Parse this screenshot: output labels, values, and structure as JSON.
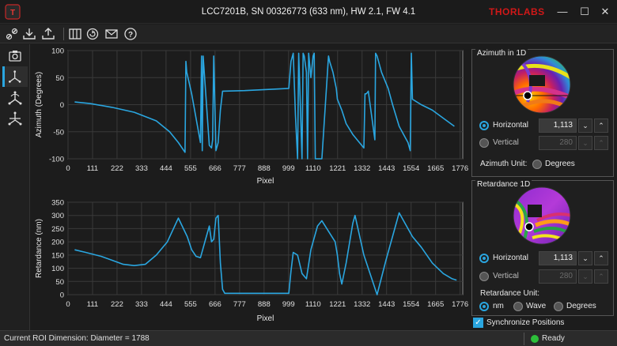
{
  "window": {
    "title": "LCC7201B, SN 00326773 (633 nm), HW 2.1, FW 4.1",
    "brand": "THORLABS",
    "minimize": "—",
    "maximize": "☐",
    "close": "✕"
  },
  "toolbar": {
    "icons": [
      "connect-icon",
      "download-icon",
      "upload-icon",
      "grid-icon",
      "refresh-icon",
      "mail-icon",
      "help-icon"
    ]
  },
  "leftnav": {
    "items": [
      "camera-icon",
      "axes-icon",
      "axes-rotate-icon",
      "axes-3d-icon"
    ],
    "active_index": 1
  },
  "chart_data": [
    {
      "type": "line",
      "title": "",
      "xlabel": "Pixel",
      "ylabel": "Azimuth (Degrees)",
      "xlim": [
        0,
        1788
      ],
      "ylim": [
        -100,
        100
      ],
      "xticks": [
        "0",
        "111",
        "222",
        "333",
        "444",
        "555",
        "666",
        "777",
        "888",
        "999",
        "1110",
        "1221",
        "1332",
        "1443",
        "1554",
        "1665",
        "1776"
      ],
      "yticks": [
        "100",
        "50",
        "0",
        "-50",
        "-100"
      ],
      "color": "#2aa6e0",
      "x": [
        30,
        100,
        200,
        300,
        400,
        460,
        500,
        530,
        534,
        538,
        560,
        600,
        605,
        608,
        612,
        640,
        650,
        655,
        660,
        670,
        680,
        690,
        700,
        800,
        900,
        1000,
        1010,
        1020,
        1030,
        1040,
        1045,
        1050,
        1060,
        1065,
        1070,
        1080,
        1085,
        1090,
        1100,
        1110,
        1115,
        1120,
        1150,
        1180,
        1185,
        1200,
        1215,
        1220,
        1230,
        1240,
        1260,
        1290,
        1320,
        1340,
        1345,
        1350,
        1355,
        1360,
        1390,
        1393,
        1400,
        1420,
        1450,
        1470,
        1500,
        1540,
        1550,
        1555,
        1560,
        1600,
        1650,
        1700,
        1750
      ],
      "y": [
        5,
        2,
        -5,
        -14,
        -30,
        -50,
        -70,
        -88,
        80,
        60,
        20,
        -70,
        90,
        -85,
        90,
        -75,
        -80,
        -65,
        90,
        -85,
        -70,
        -10,
        25,
        26,
        28,
        30,
        80,
        95,
        -20,
        -100,
        95,
        30,
        -100,
        95,
        90,
        60,
        -100,
        95,
        50,
        90,
        95,
        -100,
        -100,
        90,
        80,
        60,
        30,
        10,
        0,
        -10,
        -35,
        -55,
        -70,
        -80,
        20,
        20,
        22,
        25,
        -65,
        95,
        90,
        60,
        30,
        0,
        -40,
        -70,
        -85,
        95,
        10,
        0,
        -10,
        -25,
        -40
      ]
    },
    {
      "type": "line",
      "title": "",
      "xlabel": "Pixel",
      "ylabel": "Retardance (nm)",
      "xlim": [
        0,
        1788
      ],
      "ylim": [
        0,
        350
      ],
      "xticks": [
        "0",
        "111",
        "222",
        "333",
        "444",
        "555",
        "666",
        "777",
        "888",
        "999",
        "1110",
        "1221",
        "1332",
        "1443",
        "1554",
        "1665",
        "1776"
      ],
      "yticks": [
        "350",
        "300",
        "250",
        "200",
        "150",
        "100",
        "50",
        "0"
      ],
      "color": "#2aa6e0",
      "x": [
        30,
        80,
        150,
        200,
        250,
        300,
        350,
        400,
        450,
        500,
        540,
        560,
        580,
        600,
        620,
        640,
        650,
        660,
        670,
        680,
        690,
        700,
        710,
        720,
        800,
        900,
        1000,
        1010,
        1020,
        1040,
        1060,
        1080,
        1100,
        1110,
        1130,
        1150,
        1180,
        1210,
        1220,
        1230,
        1240,
        1260,
        1290,
        1300,
        1340,
        1400,
        1440,
        1500,
        1560,
        1600,
        1650,
        1700,
        1740,
        1760
      ],
      "y": [
        170,
        160,
        145,
        130,
        115,
        110,
        115,
        150,
        200,
        290,
        220,
        170,
        145,
        140,
        200,
        260,
        200,
        210,
        290,
        300,
        120,
        20,
        5,
        5,
        5,
        5,
        5,
        90,
        160,
        150,
        80,
        60,
        170,
        200,
        260,
        280,
        240,
        200,
        150,
        80,
        40,
        120,
        270,
        300,
        150,
        0,
        130,
        310,
        220,
        180,
        120,
        80,
        60,
        55
      ]
    }
  ],
  "azimuth_panel": {
    "title": "Azimuth in 1D",
    "horizontal_label": "Horizontal",
    "horizontal_value": "1,113",
    "vertical_label": "Vertical",
    "vertical_value": "280",
    "unit_label": "Azimuth Unit:",
    "unit_option": "Degrees"
  },
  "retardance_panel": {
    "title": "Retardance 1D",
    "horizontal_label": "Horizontal",
    "horizontal_value": "1,113",
    "vertical_label": "Vertical",
    "vertical_value": "280",
    "unit_label": "Retardance Unit:",
    "unit_options": [
      "nm",
      "Wave",
      "Degrees"
    ]
  },
  "sync": {
    "label": "Synchronize Positions",
    "checked": true
  },
  "status": {
    "roi": "Current ROI Dimension: Diameter = 1788",
    "state": "Ready"
  }
}
